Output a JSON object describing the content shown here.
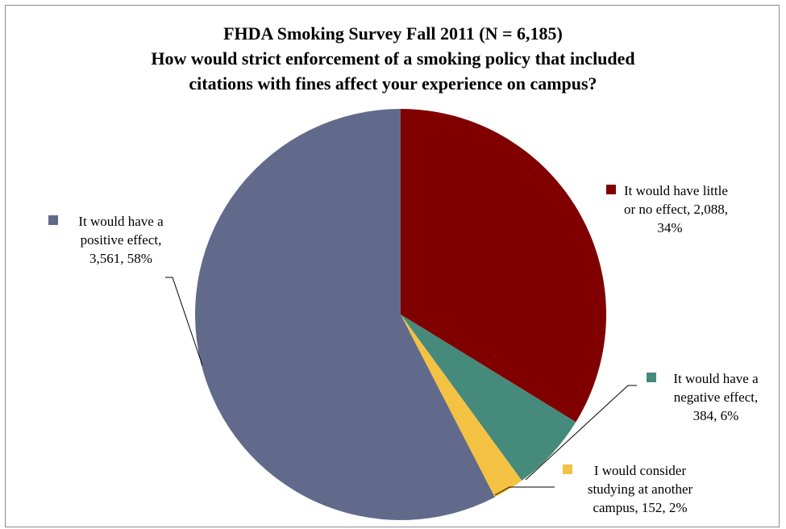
{
  "chart_data": {
    "type": "pie",
    "title_lines": [
      "FHDA Smoking Survey Fall 2011 (N = 6,185)",
      "How would strict enforcement of a smoking policy that included",
      "citations with fines affect your experience on campus?"
    ],
    "slices": [
      {
        "label": "It would have little or no effect",
        "value": 2088,
        "percent": "34%",
        "color": "#800000",
        "label_lines": [
          "It would have little",
          "or no effect, 2,088,",
          "34%"
        ]
      },
      {
        "label": "It would have a negative effect",
        "value": 384,
        "percent": "6%",
        "color": "#468a7c",
        "label_lines": [
          "It would have a",
          "negative effect,",
          "384, 6%"
        ]
      },
      {
        "label": "I would consider studying at another campus",
        "value": 152,
        "percent": "2%",
        "color": "#f4c242",
        "label_lines": [
          "I would consider",
          "studying at another",
          "campus, 152, 2%"
        ]
      },
      {
        "label": "It would have a positive effect",
        "value": 3561,
        "percent": "58%",
        "color": "#626a8c",
        "label_lines": [
          "It would have a",
          "positive effect,",
          "3,561, 58%"
        ]
      }
    ]
  }
}
